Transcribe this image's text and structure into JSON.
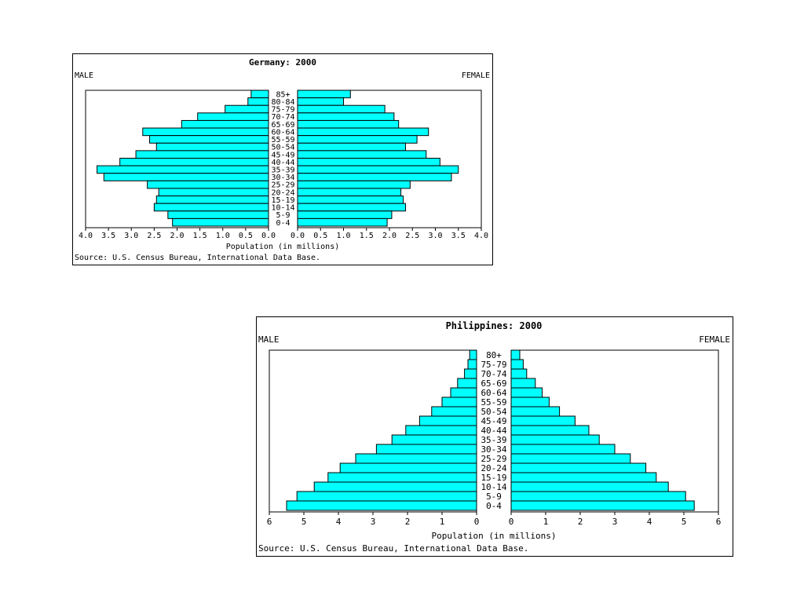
{
  "colors": {
    "bar_fill": "#00FFFF",
    "bar_stroke": "#000000",
    "background": "#FFFFFF"
  },
  "chart_data": [
    {
      "type": "bar",
      "orientation": "population-pyramid",
      "title": "Germany: 2000",
      "left_label": "MALE",
      "right_label": "FEMALE",
      "xlabel": "Population (in millions)",
      "source": "Source: U.S. Census Bureau, International Data Base.",
      "xlim": [
        0,
        4.0
      ],
      "ticks": [
        "4.0",
        "3.5",
        "3.0",
        "2.5",
        "2.0",
        "1.5",
        "1.0",
        "0.5",
        "0.0"
      ],
      "ticks_right": [
        "0.0",
        "0.5",
        "1.0",
        "1.5",
        "2.0",
        "2.5",
        "3.0",
        "3.5",
        "4.0"
      ],
      "categories": [
        "85+",
        "80-84",
        "75-79",
        "70-74",
        "65-69",
        "60-64",
        "55-59",
        "50-54",
        "45-49",
        "40-44",
        "35-39",
        "30-34",
        "25-29",
        "20-24",
        "15-19",
        "10-14",
        "5-9",
        "0-4"
      ],
      "series": [
        {
          "name": "MALE",
          "values": [
            0.38,
            0.45,
            0.95,
            1.55,
            1.9,
            2.75,
            2.6,
            2.45,
            2.9,
            3.25,
            3.75,
            3.6,
            2.65,
            2.4,
            2.45,
            2.5,
            2.2,
            2.1
          ]
        },
        {
          "name": "FEMALE",
          "values": [
            1.15,
            1.0,
            1.9,
            2.1,
            2.2,
            2.85,
            2.6,
            2.35,
            2.8,
            3.1,
            3.5,
            3.35,
            2.45,
            2.25,
            2.3,
            2.35,
            2.05,
            1.95
          ]
        }
      ]
    },
    {
      "type": "bar",
      "orientation": "population-pyramid",
      "title": "Philippines: 2000",
      "left_label": "MALE",
      "right_label": "FEMALE",
      "xlabel": "Population (in millions)",
      "source": "Source: U.S. Census Bureau, International Data Base.",
      "xlim": [
        0,
        6
      ],
      "ticks": [
        "6",
        "5",
        "4",
        "3",
        "2",
        "1",
        "0"
      ],
      "ticks_right": [
        "0",
        "1",
        "2",
        "3",
        "4",
        "5",
        "6"
      ],
      "categories": [
        "80+",
        "75-79",
        "70-74",
        "65-69",
        "60-64",
        "55-59",
        "50-54",
        "45-49",
        "40-44",
        "35-39",
        "30-34",
        "25-29",
        "20-24",
        "15-19",
        "10-14",
        "5-9",
        "0-4"
      ],
      "series": [
        {
          "name": "MALE",
          "values": [
            0.2,
            0.25,
            0.35,
            0.55,
            0.75,
            1.0,
            1.3,
            1.65,
            2.05,
            2.45,
            2.9,
            3.5,
            3.95,
            4.3,
            4.7,
            5.2,
            5.5
          ]
        },
        {
          "name": "FEMALE",
          "values": [
            0.25,
            0.35,
            0.45,
            0.7,
            0.9,
            1.1,
            1.4,
            1.85,
            2.25,
            2.55,
            3.0,
            3.45,
            3.9,
            4.2,
            4.55,
            5.05,
            5.3
          ]
        }
      ]
    }
  ]
}
